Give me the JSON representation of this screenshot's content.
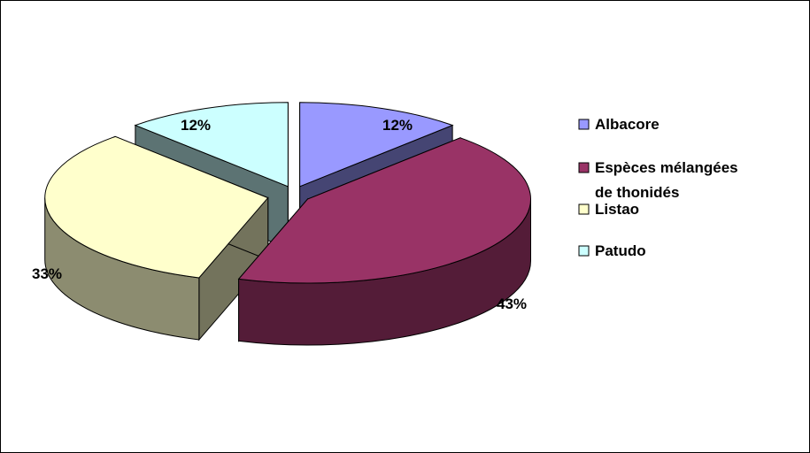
{
  "chart_data": {
    "type": "pie",
    "style": "3d-exploded",
    "title": "",
    "categories": [
      "Albacore",
      "Espèces mélangées de thonidés",
      "Listao",
      "Patudo"
    ],
    "values": [
      12,
      43,
      33,
      12
    ],
    "value_labels": [
      "12%",
      "43%",
      "33%",
      "12%"
    ],
    "legend_position": "right",
    "legend": [
      {
        "label": "Albacore"
      },
      {
        "label_line1": "Espèces mélangées",
        "label_line2": "de thonidés"
      },
      {
        "label": "Listao"
      },
      {
        "label": "Patudo"
      }
    ],
    "colors": {
      "albacore": "#9999ff",
      "especes": "#993366",
      "listao": "#ffffcc",
      "patudo": "#ccffff"
    }
  }
}
